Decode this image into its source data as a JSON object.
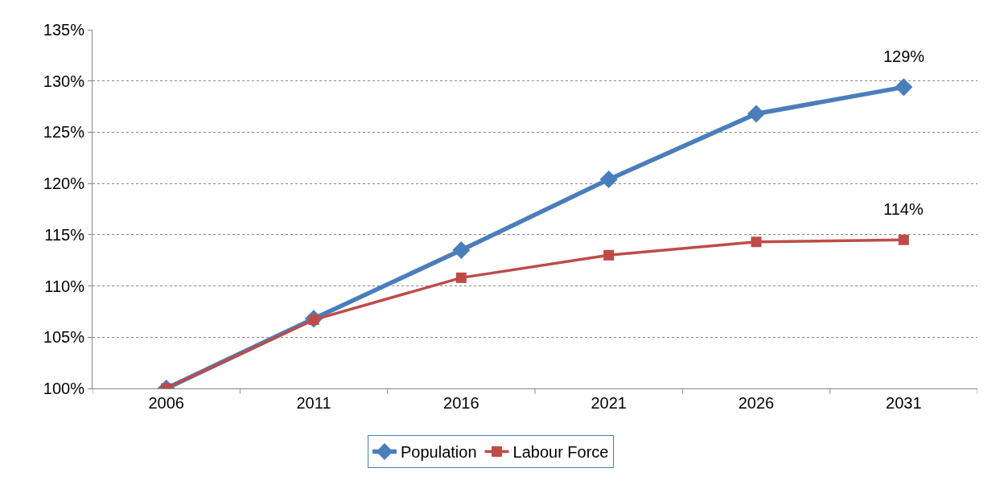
{
  "chart_data": {
    "type": "line",
    "categories": [
      "2006",
      "2011",
      "2016",
      "2021",
      "2026",
      "2031"
    ],
    "series": [
      {
        "name": "Population",
        "color": "#4a7ebb",
        "marker": "diamond",
        "values": [
          100,
          106.8,
          113.5,
          120.4,
          126.8,
          129.4
        ]
      },
      {
        "name": "Labour Force",
        "color": "#be4b48",
        "marker": "square",
        "values": [
          100,
          106.7,
          110.8,
          113.0,
          114.3,
          114.5
        ]
      }
    ],
    "ylim": [
      100,
      135
    ],
    "yticks": [
      {
        "value": 100,
        "label": "100%"
      },
      {
        "value": 105,
        "label": "105%"
      },
      {
        "value": 110,
        "label": "110%"
      },
      {
        "value": 115,
        "label": "115%"
      },
      {
        "value": 120,
        "label": "120%"
      },
      {
        "value": 125,
        "label": "125%"
      },
      {
        "value": 130,
        "label": "130%"
      },
      {
        "value": 135,
        "label": "135%"
      }
    ],
    "grid": "y",
    "legend": "bottom",
    "line_style": "solid",
    "annotations": [
      {
        "text": "129%",
        "x": "2031",
        "y": 129.4
      },
      {
        "text": "114%",
        "x": "2031",
        "y": 114.5
      }
    ]
  }
}
